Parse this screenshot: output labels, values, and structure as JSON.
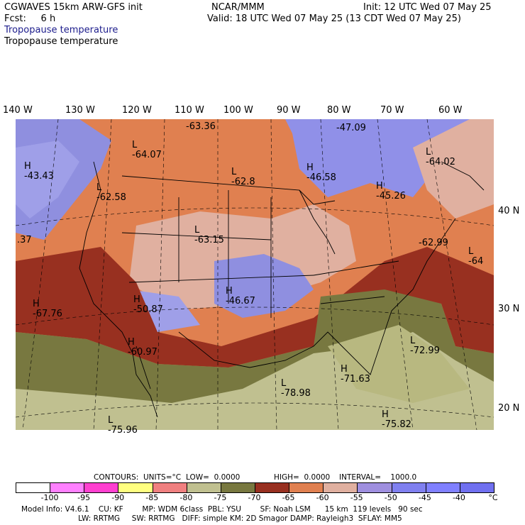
{
  "header": {
    "line1_left": "CGWAVES 15km ARW-GFS init",
    "line1_mid": "NCAR/MMM",
    "line1_right": "Init: 12 UTC Wed 07 May 25",
    "line2_left": "Fcst:     6 h",
    "line2_right": "Valid: 18 UTC Wed 07 May 25 (13 CDT Wed 07 May 25)",
    "field_title_1": "Tropopause temperature",
    "field_title_2": "Tropopause temperature"
  },
  "lon_labels": [
    "140 W",
    "130 W",
    "120 W",
    "110 W",
    "100 W",
    "90 W",
    "80 W",
    "70 W",
    "60 W"
  ],
  "lat_labels": [
    "40 N",
    "30 N",
    "20 N"
  ],
  "map_labels": [
    {
      "letter": "L",
      "value": "-63.36"
    },
    {
      "letter": "",
      "value": "-47.09"
    },
    {
      "letter": "L",
      "value": "-64.07"
    },
    {
      "letter": "H",
      "value": "-43.43"
    },
    {
      "letter": "L",
      "value": "-62.58"
    },
    {
      "letter": "L",
      "value": "-62.8"
    },
    {
      "letter": "H",
      "value": "-46.58"
    },
    {
      "letter": "L",
      "value": "-64.02"
    },
    {
      "letter": "H",
      "value": "-45.26"
    },
    {
      "letter": "",
      "value": ".37"
    },
    {
      "letter": "L",
      "value": "-63.15"
    },
    {
      "letter": "",
      "value": "-62.99"
    },
    {
      "letter": "L",
      "value": "-64"
    },
    {
      "letter": "H",
      "value": "-67.76"
    },
    {
      "letter": "H",
      "value": "-50.87"
    },
    {
      "letter": "H",
      "value": "-46.67"
    },
    {
      "letter": "H",
      "value": "-60.97"
    },
    {
      "letter": "L",
      "value": "-72.99"
    },
    {
      "letter": "H",
      "value": "-71.63"
    },
    {
      "letter": "L",
      "value": "-78.98"
    },
    {
      "letter": "H",
      "value": "-75.82"
    },
    {
      "letter": "L",
      "value": "-75.96"
    }
  ],
  "contour_info": {
    "contours": "CONTOURS:",
    "units": "UNITS=°C",
    "low": "LOW=  0.0000",
    "high": "HIGH=  0.0000",
    "interval": "INTERVAL=    1000.0"
  },
  "colorbar": {
    "colors": [
      "#ffffff",
      "#ff80ff",
      "#ff40d0",
      "#ffff80",
      "#f08080",
      "#c0c090",
      "#787840",
      "#983020",
      "#e08050",
      "#e0b0a0",
      "#9f8fdf",
      "#8080f0",
      "#8080ff",
      "#7070f0"
    ],
    "ticks": [
      "-100",
      "-95",
      "-90",
      "-85",
      "-80",
      "-75",
      "-70",
      "-65",
      "-60",
      "-55",
      "-50",
      "-45",
      "-40",
      "°C"
    ]
  },
  "model_info": {
    "line1": "Model Info: V4.6.1    CU: KF        MP: WDM 6class  PBL: YSU        SF: Noah LSM      15 km  119 levels   90 sec",
    "line2": "                        LW: RRTMG     SW: RRTMG   DIFF: simple KM: 2D Smagor DAMP: Rayleigh3  SFLAY: MM5"
  }
}
